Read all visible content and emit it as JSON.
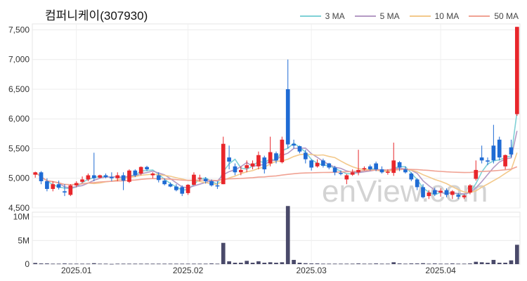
{
  "title": "컴퍼니케이(307930)",
  "watermark": "enView.com",
  "legend": [
    {
      "label": "3 MA",
      "color": "#7fd1d6"
    },
    {
      "label": "5 MA",
      "color": "#b49ac4"
    },
    {
      "label": "10 MA",
      "color": "#f3c98b"
    },
    {
      "label": "50 MA",
      "color": "#f0a293"
    }
  ],
  "chart_data": {
    "type": "candlestick",
    "title": "컴퍼니케이(307930)",
    "price_ticks": [
      "4,500",
      "5,000",
      "5,500",
      "6,000",
      "6,500",
      "7,000",
      "7,500"
    ],
    "price_tick_values": [
      4500,
      5000,
      5500,
      6000,
      6500,
      7000,
      7500
    ],
    "price_range": [
      4500,
      7600
    ],
    "volume_ticks": [
      "0",
      "5M",
      "10M"
    ],
    "volume_tick_values": [
      0,
      5000000,
      10000000
    ],
    "volume_range": [
      0,
      11000000
    ],
    "x_labels": [
      {
        "label": "2025.01",
        "index": 7
      },
      {
        "label": "2025.02",
        "index": 26
      },
      {
        "label": "2025.03",
        "index": 47
      },
      {
        "label": "2025.04",
        "index": 69
      }
    ],
    "up_color": "#e8262b",
    "down_color": "#1f6bd4",
    "volume_color": "#4a4a6a",
    "candles": [
      [
        5060,
        5110,
        5010,
        5100,
        250000
      ],
      [
        5100,
        5120,
        4900,
        4950,
        150000
      ],
      [
        4950,
        5000,
        4780,
        4820,
        150000
      ],
      [
        4820,
        4950,
        4780,
        4900,
        100000
      ],
      [
        4900,
        4960,
        4810,
        4840,
        100000
      ],
      [
        4780,
        4900,
        4700,
        4760,
        150000
      ],
      [
        4720,
        4900,
        4700,
        4880,
        100000
      ],
      [
        4880,
        4950,
        4850,
        4920,
        100000
      ],
      [
        4940,
        5030,
        4920,
        4980,
        100000
      ],
      [
        4980,
        5080,
        4950,
        5050,
        100000
      ],
      [
        5050,
        5430,
        4950,
        5000,
        200000
      ],
      [
        5010,
        5060,
        5000,
        5050,
        100000
      ],
      [
        5050,
        5080,
        5000,
        5020,
        100000
      ],
      [
        5020,
        5100,
        4950,
        5000,
        50000
      ],
      [
        5000,
        5100,
        4950,
        5050,
        100000
      ],
      [
        5050,
        5100,
        4800,
        4960,
        100000
      ],
      [
        4940,
        5150,
        4920,
        5130,
        100000
      ],
      [
        5130,
        5150,
        5020,
        5050,
        100000
      ],
      [
        5080,
        5200,
        5050,
        5190,
        100000
      ],
      [
        5190,
        5210,
        5120,
        5150,
        100000
      ],
      [
        5050,
        5100,
        5000,
        5080,
        100000
      ],
      [
        5050,
        5100,
        4930,
        4970,
        100000
      ],
      [
        4960,
        5000,
        4880,
        4900,
        100000
      ],
      [
        4900,
        4930,
        4850,
        4860,
        100000
      ],
      [
        4860,
        4900,
        4780,
        4800,
        100000
      ],
      [
        4850,
        4880,
        4700,
        4740,
        100000
      ],
      [
        4750,
        4900,
        4720,
        4890,
        100000
      ],
      [
        4890,
        5100,
        4880,
        5060,
        100000
      ],
      [
        5000,
        5060,
        4950,
        5010,
        100000
      ],
      [
        4990,
        5020,
        4910,
        4950,
        100000
      ],
      [
        4950,
        4980,
        4860,
        4880,
        150000
      ],
      [
        4880,
        4950,
        4820,
        4870,
        100000
      ],
      [
        4900,
        5700,
        4900,
        5580,
        4500000
      ],
      [
        5350,
        5550,
        5150,
        5280,
        600000
      ],
      [
        5200,
        5250,
        5050,
        5100,
        300000
      ],
      [
        5100,
        5200,
        5050,
        5140,
        300000
      ],
      [
        5170,
        5300,
        5100,
        5220,
        700000
      ],
      [
        5200,
        5300,
        5150,
        5250,
        300000
      ],
      [
        5200,
        5450,
        5150,
        5390,
        600000
      ],
      [
        5350,
        5380,
        5080,
        5150,
        300000
      ],
      [
        5250,
        5700,
        5200,
        5440,
        400000
      ],
      [
        5420,
        5450,
        5250,
        5300,
        300000
      ],
      [
        5270,
        5700,
        5250,
        5650,
        400000
      ],
      [
        6500,
        7000,
        5500,
        5570,
        12300000
      ],
      [
        5580,
        5650,
        5500,
        5550,
        900000
      ],
      [
        5540,
        5550,
        5420,
        5450,
        300000
      ],
      [
        5430,
        5480,
        5250,
        5320,
        200000
      ],
      [
        5300,
        5320,
        5130,
        5180,
        150000
      ],
      [
        5200,
        5320,
        5180,
        5260,
        150000
      ],
      [
        5300,
        5330,
        5180,
        5210,
        100000
      ],
      [
        5250,
        5260,
        5150,
        5180,
        100000
      ],
      [
        5180,
        5210,
        5050,
        5100,
        100000
      ],
      [
        5090,
        5130,
        5050,
        5080,
        100000
      ],
      [
        4980,
        5070,
        4900,
        5050,
        100000
      ],
      [
        5060,
        5150,
        5040,
        5100,
        100000
      ],
      [
        5100,
        5480,
        5050,
        5140,
        150000
      ],
      [
        5150,
        5200,
        5130,
        5170,
        100000
      ],
      [
        5200,
        5230,
        5130,
        5150,
        100000
      ],
      [
        5250,
        5280,
        5120,
        5150,
        150000
      ],
      [
        5150,
        5200,
        5080,
        5100,
        100000
      ],
      [
        5100,
        5150,
        5060,
        5110,
        100000
      ],
      [
        5090,
        5600,
        5040,
        5300,
        400000
      ],
      [
        5270,
        5290,
        5120,
        5180,
        150000
      ],
      [
        5150,
        5200,
        5080,
        5100,
        100000
      ],
      [
        5080,
        5100,
        4950,
        4980,
        150000
      ],
      [
        4980,
        5000,
        4800,
        4850,
        150000
      ],
      [
        4850,
        4900,
        4660,
        4680,
        200000
      ],
      [
        4700,
        4800,
        4650,
        4760,
        100000
      ],
      [
        4800,
        4840,
        4700,
        4730,
        150000
      ],
      [
        4760,
        4830,
        4690,
        4790,
        100000
      ],
      [
        4800,
        4830,
        4680,
        4720,
        100000
      ],
      [
        4720,
        4800,
        4650,
        4780,
        150000
      ],
      [
        4720,
        4750,
        4650,
        4690,
        100000
      ],
      [
        4680,
        4730,
        4650,
        4710,
        100000
      ],
      [
        4760,
        4900,
        4730,
        4880,
        150000
      ],
      [
        4990,
        5300,
        4960,
        5140,
        500000
      ],
      [
        5350,
        5550,
        5250,
        5300,
        400000
      ],
      [
        5300,
        5350,
        5220,
        5280,
        300000
      ],
      [
        5550,
        5900,
        5250,
        5300,
        900000
      ],
      [
        5650,
        5700,
        5300,
        5350,
        300000
      ],
      [
        5200,
        5400,
        5150,
        5390,
        300000
      ],
      [
        5520,
        5650,
        5350,
        5400,
        800000
      ],
      [
        6080,
        7550,
        6050,
        7550,
        4100000
      ]
    ]
  }
}
